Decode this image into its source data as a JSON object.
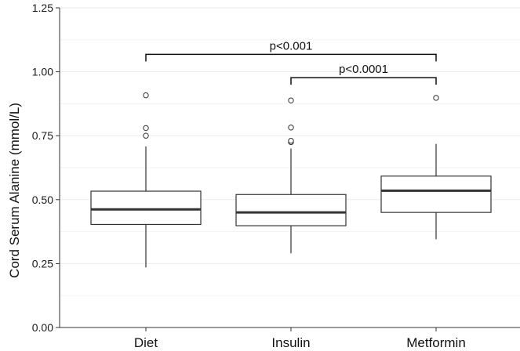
{
  "chart_data": {
    "type": "box",
    "title": "",
    "xlabel": "",
    "ylabel": "Cord Serum Alanine (mmol/L)",
    "ylim": [
      0,
      1.25
    ],
    "yticks": [
      0,
      0.25,
      0.5,
      0.75,
      1.0,
      1.25
    ],
    "ytick_labels": [
      "0.00",
      "0.25",
      "0.50",
      "0.75",
      "1.00",
      "1.25"
    ],
    "grid": true,
    "categories": [
      "Diet",
      "Insulin",
      "Metformin"
    ],
    "boxes": [
      {
        "category": "Diet",
        "whisker_low": 0.235,
        "q1": 0.403,
        "median": 0.462,
        "q3": 0.533,
        "whisker_high": 0.708,
        "outliers": [
          0.75,
          0.78,
          0.908
        ]
      },
      {
        "category": "Insulin",
        "whisker_low": 0.29,
        "q1": 0.398,
        "median": 0.45,
        "q3": 0.52,
        "whisker_high": 0.7,
        "outliers": [
          0.725,
          0.73,
          0.782,
          0.888
        ]
      },
      {
        "category": "Metformin",
        "whisker_low": 0.345,
        "q1": 0.45,
        "median": 0.535,
        "q3": 0.592,
        "whisker_high": 0.718,
        "outliers": [
          0.898
        ]
      }
    ],
    "annotations": [
      {
        "from": "Diet",
        "to": "Metformin",
        "y": 1.068,
        "label": "p<0.001"
      },
      {
        "from": "Insulin",
        "to": "Metformin",
        "y": 0.977,
        "label": "p<0.0001"
      }
    ],
    "colors": {
      "box_fill": "#ffffff",
      "box_stroke": "#333333",
      "median": "#333333",
      "grid": "#ebebeb",
      "outlier_stroke": "#333333"
    }
  }
}
